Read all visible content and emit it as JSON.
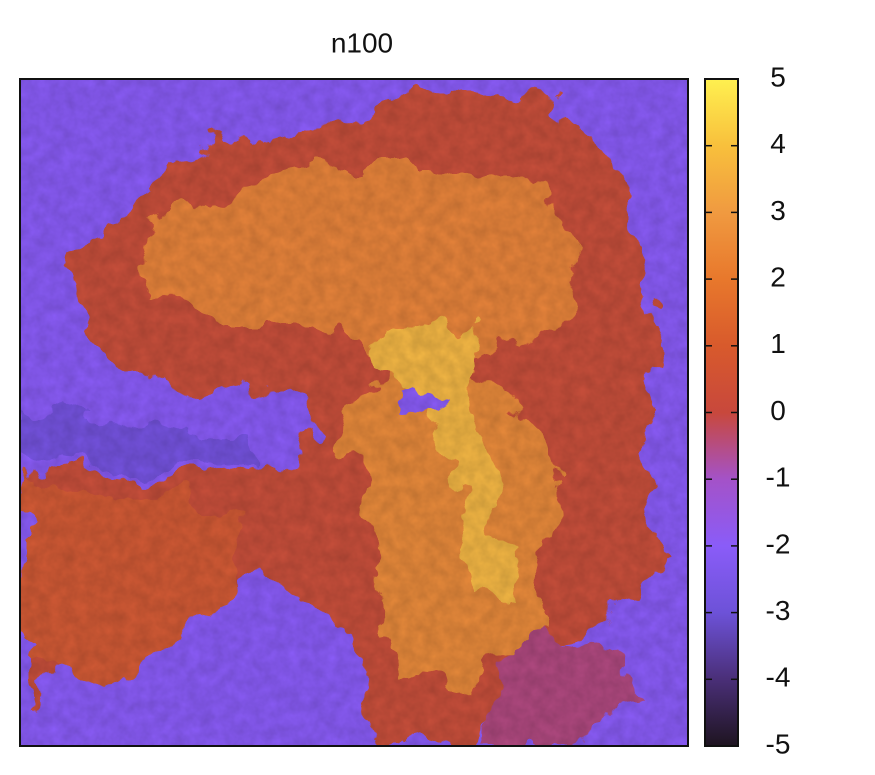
{
  "chart_data": {
    "type": "heatmap",
    "title": "n100",
    "zlim": [
      -5,
      5
    ],
    "zticks": [
      -5,
      -4,
      -3,
      -2,
      -1,
      0,
      1,
      2,
      3,
      4,
      5
    ],
    "colorscale": [
      "#1e1420",
      "#4a2f78",
      "#6d52d8",
      "#8a5cf8",
      "#a452c8",
      "#c8483c",
      "#d85a2c",
      "#e8782c",
      "#f09a40",
      "#f8c03c",
      "#fff050"
    ]
  }
}
